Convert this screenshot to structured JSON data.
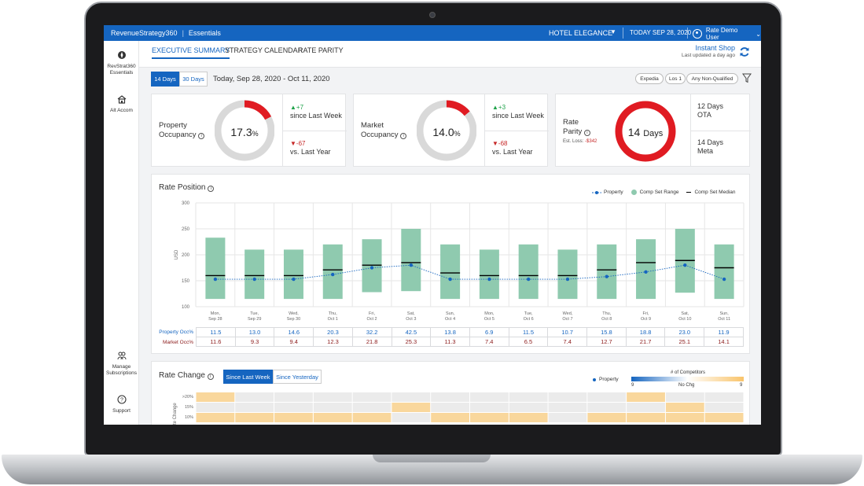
{
  "app": {
    "brand": "RevenueStrategy360",
    "product": "Essentials",
    "hotel": "HOTEL ELEGANCE",
    "today": "TODAY SEP 28, 2020",
    "user": "Rate Demo User"
  },
  "sidebar": {
    "items": [
      {
        "label_line1": "RevStrat360",
        "label_line2": "Essentials",
        "icon": "compass-icon"
      },
      {
        "label_line1": "Alt Accom",
        "label_line2": "",
        "icon": "building-icon"
      },
      {
        "label_line1": "Manage",
        "label_line2": "Subscriptions",
        "icon": "subscriptions-icon"
      },
      {
        "label_line1": "Support",
        "label_line2": "",
        "icon": "help-icon"
      }
    ]
  },
  "nav": {
    "tabs": [
      "EXECUTIVE SUMMARY",
      "STRATEGY CALENDAR",
      "RATE PARITY"
    ],
    "active_tab": 0,
    "instant_shop": "Instant Shop",
    "last_updated": "Last updated a day ago"
  },
  "filters": {
    "range_options": [
      "14 Days",
      "30 Days"
    ],
    "selected_range": "14 Days",
    "date_range": "Today, Sep 28, 2020 - Oct 11, 2020",
    "chips": [
      "Expedia",
      "Los 1",
      "Any Non-Qualified"
    ]
  },
  "kpis": {
    "property": {
      "label_line1": "Property",
      "label_line2": "Occupancy",
      "value": "17.3",
      "unit": "%",
      "fraction": 0.173,
      "week_delta": "+7",
      "week_label": "since Last Week",
      "year_delta": "-67",
      "year_label": "vs. Last Year"
    },
    "market": {
      "label_line1": "Market",
      "label_line2": "Occupancy",
      "value": "14.0",
      "unit": "%",
      "fraction": 0.14,
      "week_delta": "+3",
      "week_label": "since Last Week",
      "year_delta": "-68",
      "year_label": "vs. Last Year"
    },
    "parity": {
      "label_line1": "Rate",
      "label_line2": "Parity",
      "est_loss_label": "Est. Loss:",
      "est_loss_value": "-$342",
      "value": "14",
      "unit": "Days",
      "ota_days": "12 Days",
      "ota_label": "OTA",
      "meta_days": "14 Days",
      "meta_label": "Meta"
    }
  },
  "rate_position": {
    "title": "Rate Position",
    "legend": {
      "property": "Property",
      "range": "Comp Set Range",
      "median": "Comp Set Median"
    },
    "row_labels": [
      "Property Occ%",
      "Market Occ%"
    ]
  },
  "chart_data": {
    "type": "box-range-line",
    "title": "Rate Position",
    "ylabel": "USD",
    "ylim": [
      100,
      300
    ],
    "yticks": [
      100,
      150,
      200,
      250,
      300
    ],
    "categories": [
      [
        "Mon,",
        "Sep 28"
      ],
      [
        "Tue,",
        "Sep 29"
      ],
      [
        "Wed,",
        "Sep 30"
      ],
      [
        "Thu,",
        "Oct 1"
      ],
      [
        "Fri,",
        "Oct 2"
      ],
      [
        "Sat,",
        "Oct 3"
      ],
      [
        "Sun,",
        "Oct 4"
      ],
      [
        "Mon,",
        "Oct 5"
      ],
      [
        "Tue,",
        "Oct 6"
      ],
      [
        "Wed,",
        "Oct 7"
      ],
      [
        "Thu,",
        "Oct 8"
      ],
      [
        "Fri,",
        "Oct 9"
      ],
      [
        "Sat,",
        "Oct 10"
      ],
      [
        "Sun,",
        "Oct 11"
      ]
    ],
    "series": [
      {
        "name": "Property",
        "values": [
          153,
          153,
          153,
          162,
          175,
          180,
          153,
          153,
          153,
          153,
          158,
          167,
          180,
          153
        ]
      },
      {
        "name": "Comp Set Range",
        "ranges": [
          [
            115,
            233
          ],
          [
            115,
            210
          ],
          [
            115,
            210
          ],
          [
            115,
            220
          ],
          [
            128,
            230
          ],
          [
            130,
            250
          ],
          [
            115,
            220
          ],
          [
            115,
            210
          ],
          [
            115,
            220
          ],
          [
            115,
            210
          ],
          [
            115,
            220
          ],
          [
            115,
            230
          ],
          [
            127,
            250
          ],
          [
            115,
            220
          ]
        ]
      },
      {
        "name": "Comp Set Median",
        "values": [
          160,
          160,
          160,
          171,
          180,
          185,
          165,
          160,
          160,
          160,
          171,
          185,
          189,
          175
        ]
      }
    ],
    "property_occ": [
      "11.5",
      "13.0",
      "14.6",
      "20.3",
      "32.2",
      "42.5",
      "13.8",
      "6.9",
      "11.5",
      "10.7",
      "15.8",
      "18.8",
      "23.0",
      "11.9"
    ],
    "market_occ": [
      "11.6",
      "9.3",
      "9.4",
      "12.3",
      "21.8",
      "25.3",
      "11.3",
      "7.4",
      "6.5",
      "7.4",
      "12.7",
      "21.7",
      "25.1",
      "14.1"
    ]
  },
  "rate_change": {
    "title": "Rate Change",
    "toggles": [
      "Since Last Week",
      "Since Yesterday"
    ],
    "selected": "Since Last Week",
    "legend_property": "Property",
    "competitors_label": "# of Competitors",
    "scale_left": "9",
    "scale_mid": "No Chg",
    "scale_right": "9",
    "yticks": [
      ">20%",
      "15%",
      "10%"
    ],
    "ylabel": "Rate Change",
    "heat_rows": [
      [
        1,
        0,
        0,
        0,
        0,
        0,
        0,
        0,
        0,
        0,
        0,
        1,
        0,
        0
      ],
      [
        0,
        0,
        0,
        0,
        0,
        1,
        0,
        0,
        0,
        0,
        0,
        0,
        1,
        0
      ],
      [
        1,
        1,
        1,
        1,
        1,
        0,
        1,
        1,
        1,
        0,
        1,
        1,
        1,
        1
      ]
    ],
    "colors": {
      "orange": "#f9d79c",
      "grey": "#ebebeb"
    }
  },
  "colors": {
    "brand_blue": "#1565c0",
    "occupancy_red": "#e01b22",
    "donut_track": "#d9d9d9",
    "comp_range": "#8fcaaf",
    "property_dot": "#1565c0",
    "market_red": "#8b1a1a",
    "up_green": "#1fa34a",
    "down_red": "#c62828"
  }
}
